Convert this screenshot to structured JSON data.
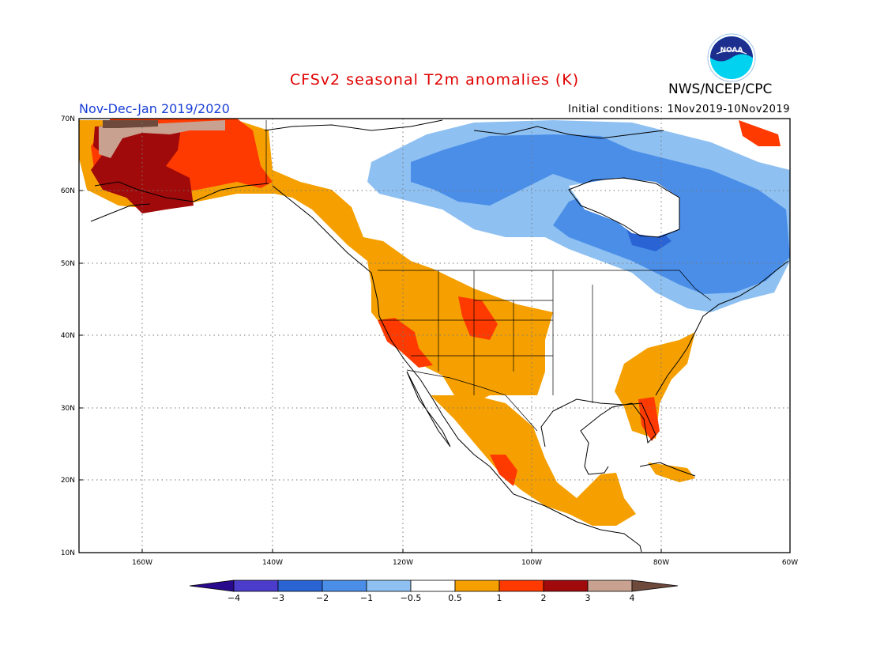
{
  "header": {
    "title": "CFSv2 seasonal T2m anomalies (K)",
    "agency": "NWS/NCEP/CPC",
    "logo_text": "NOAA",
    "period": "Nov-Dec-Jan 2019/2020",
    "initial_conditions": "Initial conditions: 1Nov2019-10Nov2019"
  },
  "map": {
    "lon_labels": [
      "160W",
      "140W",
      "120W",
      "100W",
      "80W",
      "60W"
    ],
    "lat_labels": [
      "70N",
      "60N",
      "50N",
      "40N",
      "30N",
      "20N",
      "10N"
    ]
  },
  "legend": {
    "tick_labels": [
      "-4",
      "-3",
      "-2",
      "-1",
      "-0.5",
      "0.5",
      "1",
      "2",
      "3",
      "4"
    ],
    "colors": [
      "#2a0a8c",
      "#4b3ccc",
      "#2a64d4",
      "#4a8ee8",
      "#8ec0f2",
      "#ffffff",
      "#f5a000",
      "#ff3a00",
      "#a00a0a",
      "#c9a190",
      "#6e4a3c"
    ]
  }
}
